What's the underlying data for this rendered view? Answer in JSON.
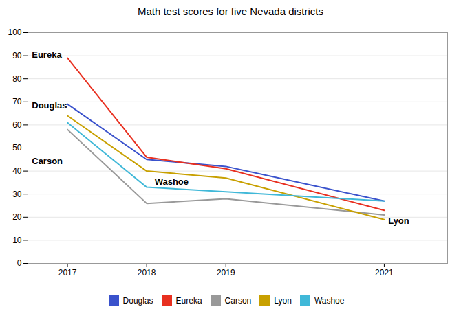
{
  "chart_data": {
    "type": "line",
    "title": "Math test scores for five Nevada districts",
    "x": [
      2017,
      2018,
      2019,
      2021
    ],
    "series": [
      {
        "name": "Douglas",
        "color": "#3a52cc",
        "values": [
          69,
          45,
          42,
          27
        ]
      },
      {
        "name": "Eureka",
        "color": "#e83020",
        "values": [
          89,
          46,
          41,
          23
        ]
      },
      {
        "name": "Carson",
        "color": "#999999",
        "values": [
          58,
          26,
          28,
          21
        ]
      },
      {
        "name": "Lyon",
        "color": "#c8a000",
        "values": [
          64,
          40,
          37,
          19
        ]
      },
      {
        "name": "Washoe",
        "color": "#40b8d8",
        "values": [
          61,
          33,
          31,
          27
        ]
      }
    ],
    "annotations": [
      {
        "text": "Eureka",
        "x": 2016.55,
        "y": 89
      },
      {
        "text": "Douglas",
        "x": 2016.55,
        "y": 67
      },
      {
        "text": "Carson",
        "x": 2016.55,
        "y": 43
      },
      {
        "text": "Washoe",
        "x": 2018.1,
        "y": 34
      },
      {
        "text": "Lyon",
        "x": 2021.05,
        "y": 17
      }
    ],
    "xlim": [
      2016.5,
      2021.8
    ],
    "xticks": [
      2017,
      2018,
      2019,
      2021
    ],
    "ylim": [
      0,
      100
    ],
    "yticks": [
      0,
      10,
      20,
      30,
      40,
      50,
      60,
      70,
      80,
      90,
      100
    ],
    "grid": "y",
    "legend": "bottom"
  }
}
